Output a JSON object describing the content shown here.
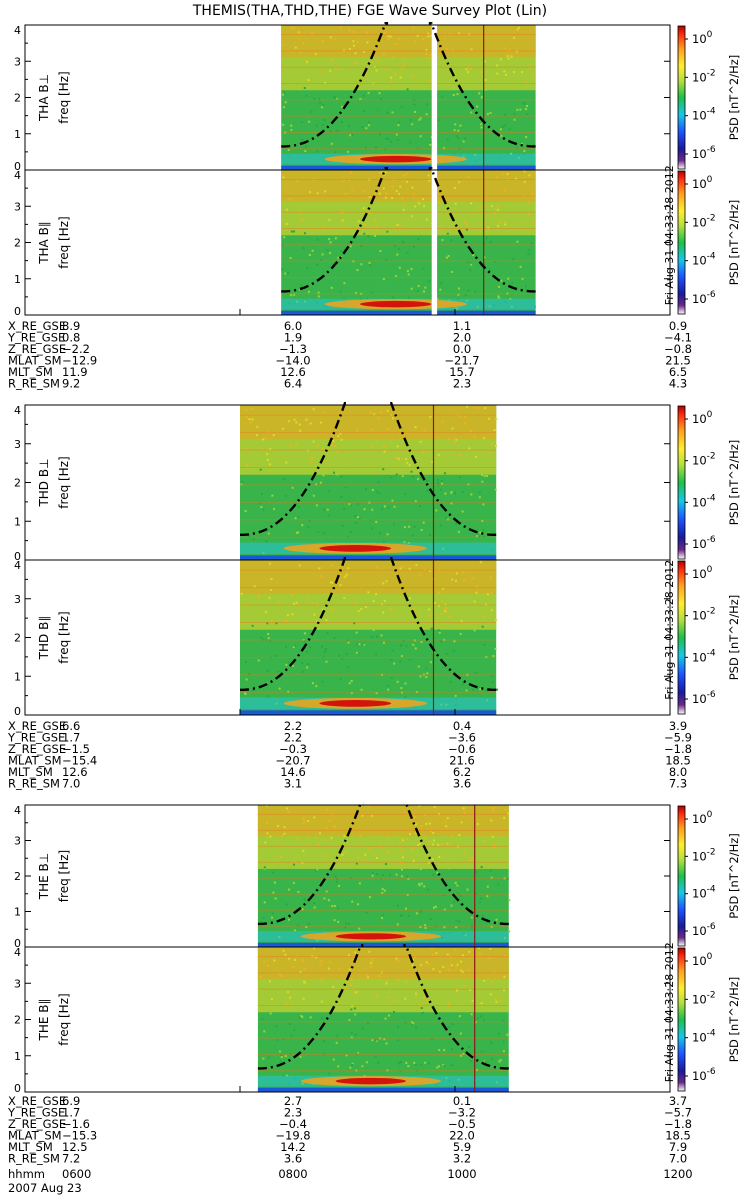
{
  "title": "THEMIS(THA,THD,THE) FGE Wave Survey Plot (Lin)",
  "colors": {
    "bg": "#ffffff",
    "axis": "#000000",
    "spec_low": "#39b44a",
    "spec_mid": "#c8d230",
    "spec_high": "#e9a41e",
    "spec_peak": "#d2140c",
    "spec_floor": "#1a58d8",
    "cyclotron_curve": "#000000",
    "marker_line": "#8a1a1a"
  },
  "colorbar": {
    "label": "PSD [nT^2/Hz]",
    "tick_labels": [
      "10^0",
      "10^-2",
      "10^-4",
      "10^-6"
    ],
    "side_text": "Fri Aug 31 04:33:28 2012"
  },
  "ephemeris_labels": [
    "X_RE_GSE",
    "Y_RE_GSE",
    "Z_RE_GSE",
    "MLAT_SM",
    "MLT_SM",
    "R_RE_SM"
  ],
  "chart_data": [
    {
      "type": "heatmap",
      "probe": "THA",
      "component": "B⊥",
      "ylabel_top": "THA B⊥",
      "ylabel": "freq [Hz]",
      "ylim": [
        0,
        4
      ],
      "y_ticks": [
        "0",
        "1",
        "2",
        "3",
        "4"
      ],
      "x_data_range": [
        "0823",
        "1045"
      ],
      "gaps": [
        [
          "0947",
          "0950"
        ]
      ],
      "marker": "1016",
      "cyclotron_curve": true,
      "peak_band_freq": 0.3
    },
    {
      "type": "heatmap",
      "probe": "THA",
      "component": "B∥",
      "ylabel_top": "THA B∥",
      "ylabel": "freq [Hz]",
      "ylim": [
        0,
        4
      ],
      "y_ticks": [
        "0",
        "1",
        "2",
        "3",
        "4"
      ],
      "x_data_range": [
        "0823",
        "1045"
      ],
      "gaps": [
        [
          "0947",
          "0950"
        ]
      ],
      "marker": "1016",
      "cyclotron_curve": true,
      "peak_band_freq": 0.3
    },
    {
      "type": "heatmap",
      "probe": "THD",
      "component": "B⊥",
      "ylabel_top": "THD B⊥",
      "ylabel": "freq [Hz]",
      "ylim": [
        0,
        4
      ],
      "y_ticks": [
        "0",
        "1",
        "2",
        "3",
        "4"
      ],
      "x_data_range": [
        "0800",
        "1023"
      ],
      "gaps": [],
      "marker": "0948",
      "cyclotron_curve": true,
      "peak_band_freq": 0.3
    },
    {
      "type": "heatmap",
      "probe": "THD",
      "component": "B∥",
      "ylabel_top": "THD B∥",
      "ylabel": "freq [Hz]",
      "ylim": [
        0,
        4
      ],
      "y_ticks": [
        "0",
        "1",
        "2",
        "3",
        "4"
      ],
      "x_data_range": [
        "0800",
        "1023"
      ],
      "gaps": [],
      "marker": "0948",
      "cyclotron_curve": true,
      "peak_band_freq": 0.3
    },
    {
      "type": "heatmap",
      "probe": "THE",
      "component": "B⊥",
      "ylabel_top": "THE B⊥",
      "ylabel": "freq [Hz]",
      "ylim": [
        0,
        4
      ],
      "y_ticks": [
        "0",
        "1",
        "2",
        "3",
        "4"
      ],
      "x_data_range": [
        "0810",
        "1030"
      ],
      "gaps": [],
      "marker": "1011",
      "cyclotron_curve": true,
      "peak_band_freq": 0.3
    },
    {
      "type": "heatmap",
      "probe": "THE",
      "component": "B∥",
      "ylabel_top": "THE B∥",
      "ylabel": "freq [Hz]",
      "ylim": [
        0,
        4
      ],
      "y_ticks": [
        "0",
        "1",
        "2",
        "3",
        "4"
      ],
      "x_data_range": [
        "0810",
        "1030"
      ],
      "gaps": [],
      "marker": "1011",
      "cyclotron_curve": true,
      "peak_band_freq": 0.3
    }
  ],
  "ephemeris": [
    {
      "values": [
        [
          "8.9",
          "6.0",
          "1.1",
          "0.9"
        ],
        [
          "0.8",
          "1.9",
          "2.0",
          "−4.1"
        ],
        [
          "−2.2",
          "−1.3",
          "0.0",
          "−0.8"
        ],
        [
          "−12.9",
          "−14.0",
          "−21.7",
          "21.5"
        ],
        [
          "11.9",
          "12.6",
          "15.7",
          "6.5"
        ],
        [
          "9.2",
          "6.4",
          "2.3",
          "4.3"
        ]
      ]
    },
    {
      "values": [
        [
          "6.6",
          "2.2",
          "0.4",
          "3.9"
        ],
        [
          "1.7",
          "2.2",
          "−3.6",
          "−5.9"
        ],
        [
          "−1.5",
          "−0.3",
          "−0.6",
          "−1.8"
        ],
        [
          "−15.4",
          "−20.7",
          "21.6",
          "18.5"
        ],
        [
          "12.6",
          "14.6",
          "6.2",
          "8.0"
        ],
        [
          "7.0",
          "3.1",
          "3.6",
          "7.3"
        ]
      ]
    },
    {
      "values": [
        [
          "6.9",
          "2.7",
          "0.1",
          "3.7"
        ],
        [
          "1.7",
          "2.3",
          "−3.2",
          "−5.7"
        ],
        [
          "−1.6",
          "−0.4",
          "−0.5",
          "−1.8"
        ],
        [
          "−15.3",
          "−19.8",
          "22.0",
          "18.5"
        ],
        [
          "12.5",
          "14.2",
          "5.9",
          "7.9"
        ],
        [
          "7.2",
          "3.6",
          "3.2",
          "7.0"
        ]
      ]
    }
  ],
  "time_axis": {
    "label": "hhmm",
    "ticks": [
      "0600",
      "0800",
      "1000",
      "1200"
    ],
    "date": "2007 Aug 23"
  }
}
